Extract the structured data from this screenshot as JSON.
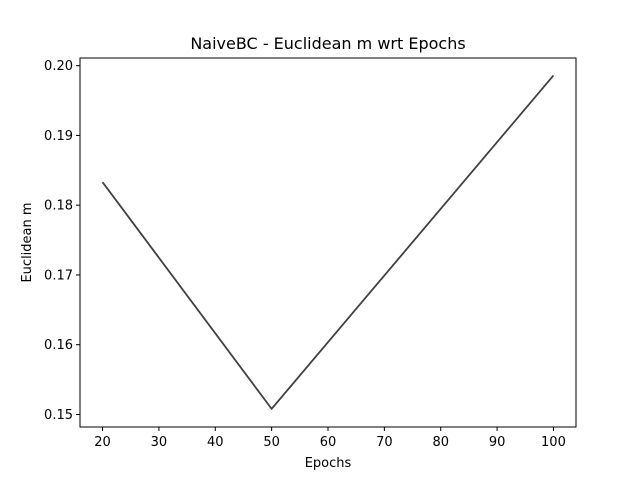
{
  "chart_data": {
    "type": "line",
    "title": "NaiveBC - Euclidean m wrt Epochs",
    "xlabel": "Epochs",
    "ylabel": "Euclidean m",
    "x": [
      20,
      50,
      100
    ],
    "series": [
      {
        "values": [
          0.1833,
          0.1508,
          0.1986
        ]
      }
    ],
    "xlim": [
      16,
      104
    ],
    "ylim": [
      0.1482,
      0.2011
    ],
    "xticks": [
      20,
      30,
      40,
      50,
      60,
      70,
      80,
      90,
      100
    ],
    "yticks": [
      0.15,
      0.16,
      0.17,
      0.18,
      0.19,
      0.2
    ],
    "xtick_labels": [
      "20",
      "30",
      "40",
      "50",
      "60",
      "70",
      "80",
      "90",
      "100"
    ],
    "ytick_labels": [
      "0.15",
      "0.16",
      "0.17",
      "0.18",
      "0.19",
      "0.20"
    ],
    "grid": false,
    "line_color": "#404040"
  }
}
